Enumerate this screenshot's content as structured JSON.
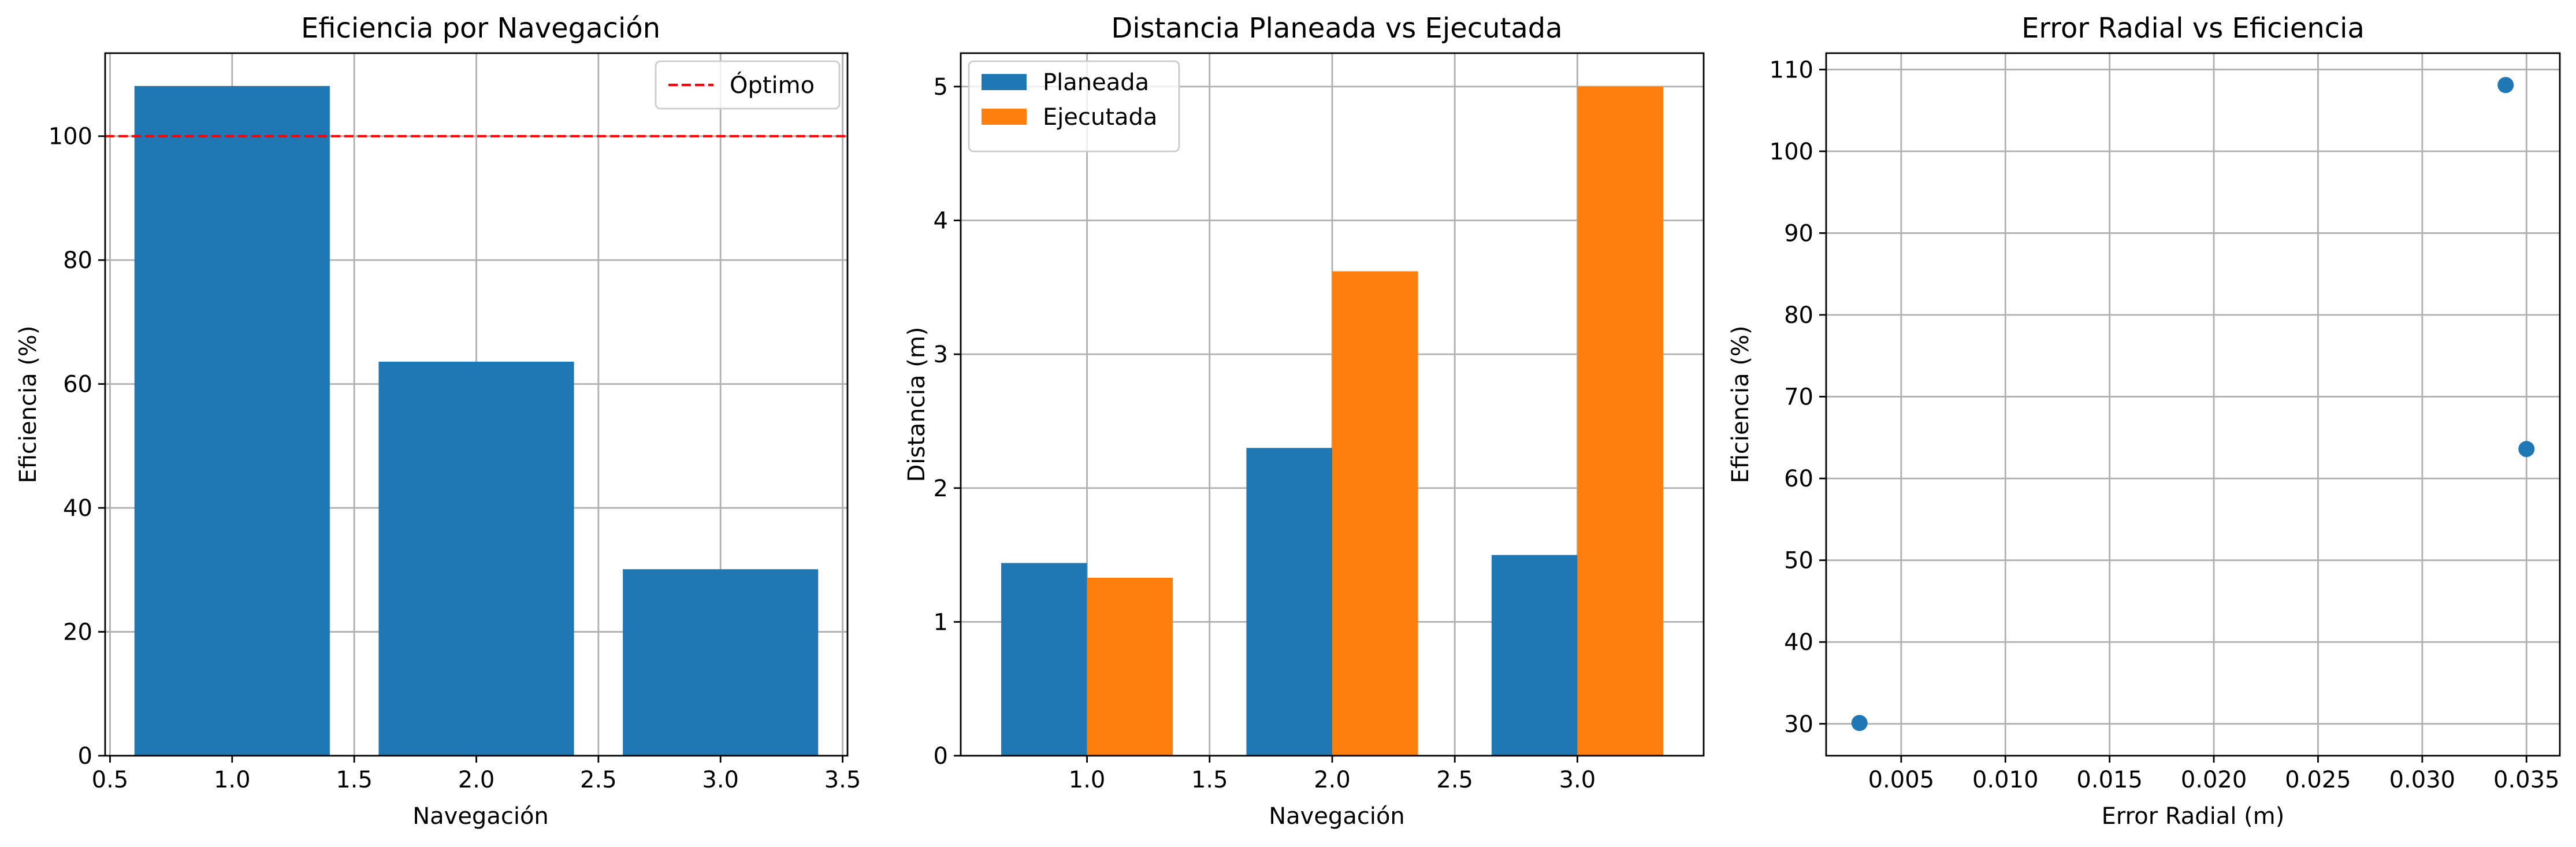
{
  "chart_data": [
    {
      "type": "bar",
      "title": "Eficiencia por Navegación",
      "xlabel": "Navegación",
      "ylabel": "Eficiencia (%)",
      "xlim": [
        0.48,
        3.52
      ],
      "ylim": [
        0,
        113.4
      ],
      "xticks": [
        0.5,
        1.0,
        1.5,
        2.0,
        2.5,
        3.0,
        3.5
      ],
      "xtick_labels": [
        "0.5",
        "1.0",
        "1.5",
        "2.0",
        "2.5",
        "3.0",
        "3.5"
      ],
      "yticks": [
        0,
        20,
        40,
        60,
        80,
        100
      ],
      "ytick_labels": [
        "0",
        "20",
        "40",
        "60",
        "80",
        "100"
      ],
      "grid": true,
      "bar_width": 0.8,
      "x": [
        1,
        2,
        3
      ],
      "values": [
        108.1,
        63.6,
        30.1
      ],
      "color": "#1f77b4",
      "reference_line": {
        "y": 100,
        "label": "Óptimo",
        "color": "#ff0000",
        "style": "dashed"
      },
      "legend_position": "top-right"
    },
    {
      "type": "bar",
      "title": "Distancia Planeada vs Ejecutada",
      "xlabel": "Navegación",
      "ylabel": "Distancia (m)",
      "xlim": [
        0.485,
        3.515
      ],
      "ylim": [
        0,
        5.25
      ],
      "xticks": [
        1.0,
        1.5,
        2.0,
        2.5,
        3.0
      ],
      "xtick_labels": [
        "1.0",
        "1.5",
        "2.0",
        "2.5",
        "3.0"
      ],
      "yticks": [
        0,
        1,
        2,
        3,
        4,
        5
      ],
      "ytick_labels": [
        "0",
        "1",
        "2",
        "3",
        "4",
        "5"
      ],
      "grid": true,
      "bar_width": 0.35,
      "x": [
        1,
        2,
        3
      ],
      "series": [
        {
          "name": "Planeada",
          "values": [
            1.44,
            2.3,
            1.5
          ],
          "color": "#1f77b4",
          "offset": -0.175
        },
        {
          "name": "Ejecutada",
          "values": [
            1.33,
            3.62,
            5.0
          ],
          "color": "#ff7f0e",
          "offset": 0.175
        }
      ],
      "legend_position": "top-left"
    },
    {
      "type": "scatter",
      "title": "Error Radial vs Eficiencia",
      "xlabel": "Error Radial (m)",
      "ylabel": "Eficiencia (%)",
      "xlim": [
        0.0014,
        0.0366
      ],
      "ylim": [
        26.1,
        112.0
      ],
      "xticks": [
        0.005,
        0.01,
        0.015,
        0.02,
        0.025,
        0.03,
        0.035
      ],
      "xtick_labels": [
        "0.005",
        "0.010",
        "0.015",
        "0.020",
        "0.025",
        "0.030",
        "0.035"
      ],
      "yticks": [
        30,
        40,
        50,
        60,
        70,
        80,
        90,
        100,
        110
      ],
      "ytick_labels": [
        "30",
        "40",
        "50",
        "60",
        "70",
        "80",
        "90",
        "100",
        "110"
      ],
      "grid": true,
      "points": [
        {
          "x": 0.003,
          "y": 30.1
        },
        {
          "x": 0.034,
          "y": 108.1
        },
        {
          "x": 0.035,
          "y": 63.6
        }
      ],
      "color": "#1f77b4"
    }
  ]
}
